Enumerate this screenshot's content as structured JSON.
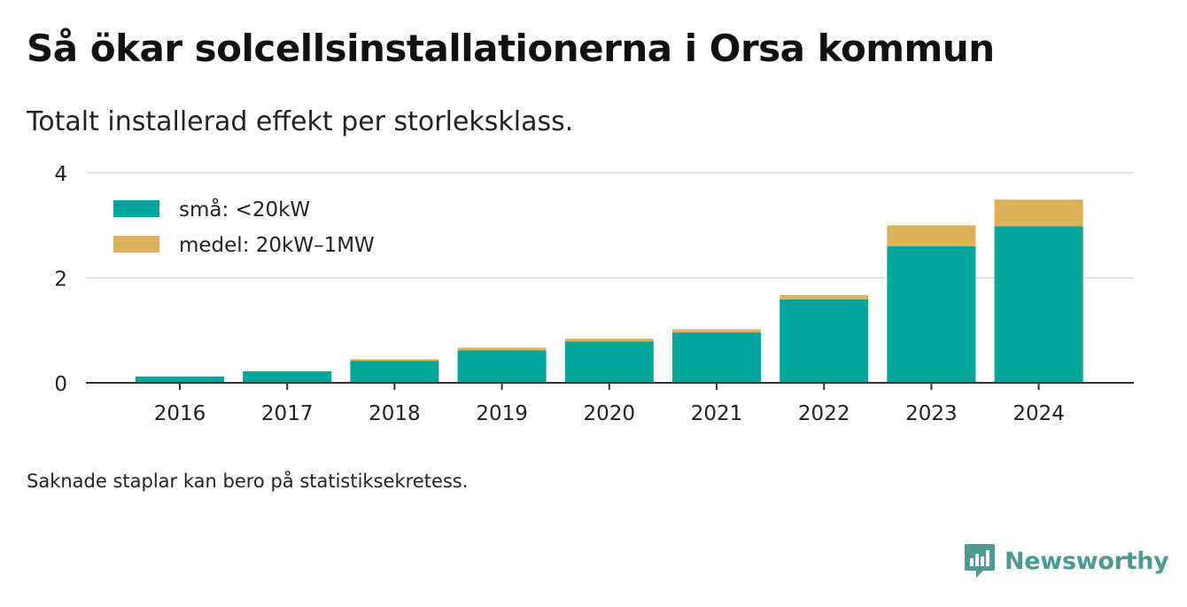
{
  "title": "Så ökar solcellsinstallationerna i Orsa kommun",
  "subtitle": "Totalt installerad effekt per storleksklass.",
  "note": "Saknade staplar kan bero på statistiksekretess.",
  "brand": {
    "name": "Newsworthy",
    "icon": "newsworthy-logo-icon",
    "color": "#4c9a92"
  },
  "chart_data": {
    "type": "bar",
    "stacked": true,
    "categories": [
      "2016",
      "2017",
      "2018",
      "2019",
      "2020",
      "2021",
      "2022",
      "2023",
      "2024"
    ],
    "series": [
      {
        "name": "små: <20kW",
        "color": "#00a69c",
        "values": [
          0.12,
          0.22,
          0.42,
          0.62,
          0.79,
          0.96,
          1.59,
          2.6,
          2.98
        ]
      },
      {
        "name": "medel: 20kW–1MW",
        "color": "#dfb25a",
        "values": [
          0.0,
          0.0,
          0.03,
          0.05,
          0.05,
          0.06,
          0.08,
          0.4,
          0.51
        ]
      }
    ],
    "yticks": [
      "0",
      "2",
      "4"
    ],
    "ylim": [
      0,
      4
    ],
    "grid": true,
    "legend_position": "top-left"
  }
}
